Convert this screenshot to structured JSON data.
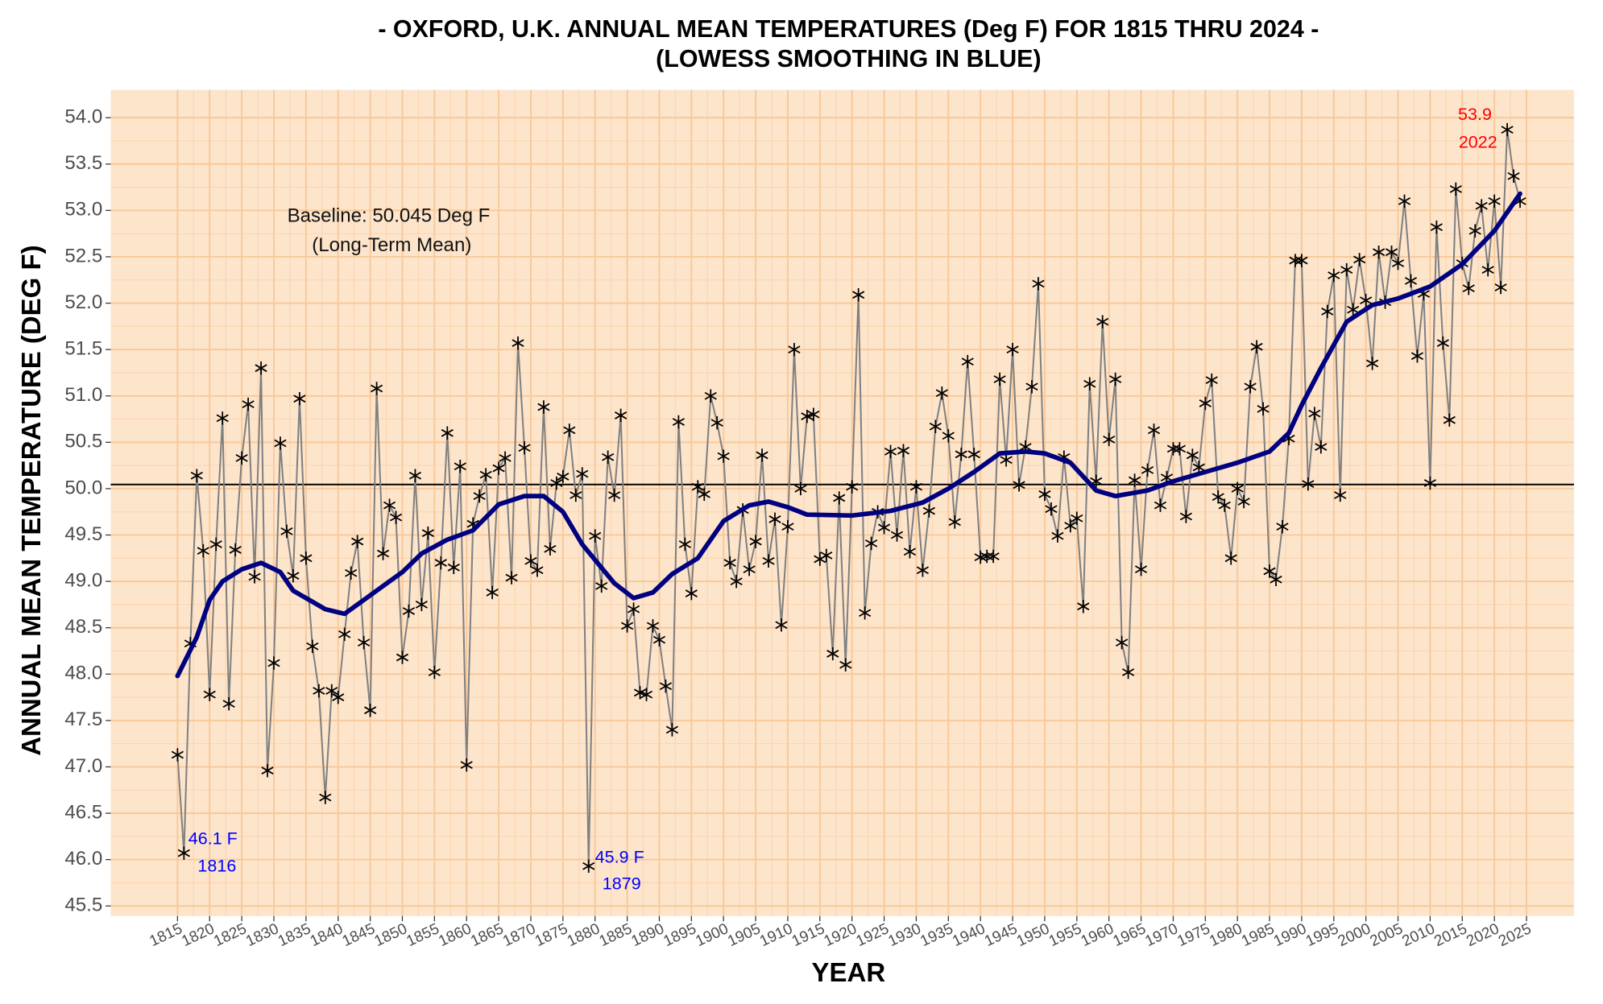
{
  "chart_data": {
    "type": "line",
    "title": "- OXFORD, U.K. ANNUAL MEAN TEMPERATURES (Deg F) FOR 1815 THRU 2024 -",
    "subtitle": "(LOWESS SMOOTHING IN BLUE)",
    "x_label": "YEAR",
    "y_label": "ANNUAL MEAN TEMPERATURE (DEG F)",
    "x": [
      1815,
      1816,
      1817,
      1818,
      1819,
      1820,
      1821,
      1822,
      1823,
      1824,
      1825,
      1826,
      1827,
      1828,
      1829,
      1830,
      1831,
      1832,
      1833,
      1834,
      1835,
      1836,
      1837,
      1838,
      1839,
      1840,
      1841,
      1842,
      1843,
      1844,
      1845,
      1846,
      1847,
      1848,
      1849,
      1850,
      1851,
      1852,
      1853,
      1854,
      1855,
      1856,
      1857,
      1858,
      1859,
      1860,
      1861,
      1862,
      1863,
      1864,
      1865,
      1866,
      1867,
      1868,
      1869,
      1870,
      1871,
      1872,
      1873,
      1874,
      1875,
      1876,
      1877,
      1878,
      1879,
      1880,
      1881,
      1882,
      1883,
      1884,
      1885,
      1886,
      1887,
      1888,
      1889,
      1890,
      1891,
      1892,
      1893,
      1894,
      1895,
      1896,
      1897,
      1898,
      1899,
      1900,
      1901,
      1902,
      1903,
      1904,
      1905,
      1906,
      1907,
      1908,
      1909,
      1910,
      1911,
      1912,
      1913,
      1914,
      1915,
      1916,
      1917,
      1918,
      1919,
      1920,
      1921,
      1922,
      1923,
      1924,
      1925,
      1926,
      1927,
      1928,
      1929,
      1930,
      1931,
      1932,
      1933,
      1934,
      1935,
      1936,
      1937,
      1938,
      1939,
      1940,
      1941,
      1942,
      1943,
      1944,
      1945,
      1946,
      1947,
      1948,
      1949,
      1950,
      1951,
      1952,
      1953,
      1954,
      1955,
      1956,
      1957,
      1958,
      1959,
      1960,
      1961,
      1962,
      1963,
      1964,
      1965,
      1966,
      1967,
      1968,
      1969,
      1970,
      1971,
      1972,
      1973,
      1974,
      1975,
      1976,
      1977,
      1978,
      1979,
      1980,
      1981,
      1982,
      1983,
      1984,
      1985,
      1986,
      1987,
      1988,
      1989,
      1990,
      1991,
      1992,
      1993,
      1994,
      1995,
      1996,
      1997,
      1998,
      1999,
      2000,
      2001,
      2002,
      2003,
      2004,
      2005,
      2006,
      2007,
      2008,
      2009,
      2010,
      2011,
      2012,
      2013,
      2014,
      2015,
      2016,
      2017,
      2018,
      2019,
      2020,
      2021,
      2022,
      2023,
      2024
    ],
    "series": [
      {
        "color": "#808080",
        "marker_color": "#000000",
        "values": [
          47.13,
          46.07,
          48.33,
          50.14,
          49.33,
          47.78,
          49.4,
          50.76,
          47.68,
          49.34,
          50.33,
          50.91,
          49.05,
          51.3,
          46.96,
          48.12,
          50.49,
          49.54,
          49.06,
          50.97,
          49.25,
          48.3,
          47.82,
          46.67,
          47.82,
          47.75,
          48.43,
          49.09,
          49.43,
          48.34,
          47.61,
          51.08,
          49.3,
          49.82,
          49.69,
          48.18,
          48.68,
          50.14,
          48.75,
          49.52,
          48.02,
          49.2,
          50.6,
          49.15,
          50.24,
          47.02,
          49.62,
          49.92,
          50.15,
          48.88,
          50.22,
          50.33,
          49.04,
          51.57,
          50.44,
          49.22,
          49.12,
          50.88,
          49.35,
          50.06,
          50.13,
          50.63,
          49.93,
          50.16,
          45.93,
          49.49,
          48.95,
          50.34,
          49.93,
          50.79,
          48.52,
          48.7,
          47.8,
          47.78,
          48.52,
          48.37,
          47.87,
          47.4,
          50.72,
          49.4,
          48.87,
          50.02,
          49.94,
          51.0,
          50.71,
          50.35,
          49.2,
          49.0,
          49.77,
          49.13,
          49.43,
          50.36,
          49.22,
          49.67,
          48.53,
          49.59,
          51.5,
          50.0,
          50.78,
          50.8,
          49.24,
          49.28,
          48.22,
          49.9,
          48.1,
          50.02,
          52.09,
          48.66,
          49.41,
          49.75,
          49.58,
          50.4,
          49.5,
          50.41,
          49.32,
          50.02,
          49.12,
          49.76,
          50.67,
          51.03,
          50.57,
          49.64,
          50.37,
          51.37,
          50.37,
          49.26,
          49.27,
          49.27,
          51.18,
          50.31,
          51.5,
          50.04,
          50.45,
          51.1,
          52.21,
          49.94,
          49.78,
          49.49,
          50.34,
          49.6,
          49.68,
          48.73,
          51.13,
          50.08,
          51.8,
          50.53,
          51.18,
          48.34,
          48.02,
          50.09,
          49.13,
          50.2,
          50.63,
          49.82,
          50.12,
          50.43,
          50.43,
          49.7,
          50.36,
          50.23,
          50.92,
          51.17,
          49.91,
          49.82,
          49.25,
          50.0,
          49.86,
          51.1,
          51.53,
          50.86,
          49.11,
          49.02,
          49.59,
          50.54,
          52.46,
          52.46,
          50.05,
          50.81,
          50.45,
          51.91,
          52.3,
          49.93,
          52.36,
          51.93,
          52.47,
          52.03,
          51.35,
          52.55,
          52.01,
          52.55,
          52.43,
          53.1,
          52.24,
          51.43,
          52.1,
          50.06,
          52.82,
          51.57,
          50.74,
          53.23,
          52.43,
          52.16,
          52.78,
          53.05,
          52.36,
          53.1,
          52.17,
          53.87,
          53.37,
          53.1
        ]
      }
    ],
    "smooth": {
      "color": "#000080",
      "x": [
        1815,
        1818,
        1820,
        1822,
        1825,
        1828,
        1831,
        1833,
        1838,
        1841,
        1844,
        1847,
        1850,
        1853,
        1857,
        1861,
        1865,
        1869,
        1872,
        1875,
        1878,
        1883,
        1886,
        1889,
        1892,
        1896,
        1900,
        1904,
        1907,
        1910,
        1913,
        1920,
        1926,
        1931,
        1935,
        1939,
        1943,
        1947,
        1950,
        1954,
        1958,
        1961,
        1966,
        1970,
        1975,
        1980,
        1985,
        1988,
        1990,
        1993,
        1997,
        2001,
        2005,
        2010,
        2015,
        2020,
        2024
      ],
      "values": [
        47.98,
        48.4,
        48.8,
        49.0,
        49.13,
        49.2,
        49.1,
        48.9,
        48.7,
        48.65,
        48.8,
        48.95,
        49.1,
        49.3,
        49.45,
        49.55,
        49.83,
        49.92,
        49.92,
        49.75,
        49.4,
        48.98,
        48.82,
        48.88,
        49.08,
        49.25,
        49.65,
        49.82,
        49.86,
        49.8,
        49.72,
        49.71,
        49.76,
        49.85,
        50.0,
        50.18,
        50.38,
        50.4,
        50.38,
        50.28,
        49.98,
        49.92,
        49.98,
        50.08,
        50.18,
        50.28,
        50.4,
        50.6,
        50.9,
        51.3,
        51.8,
        51.98,
        52.05,
        52.18,
        52.42,
        52.78,
        53.18
      ]
    },
    "baseline": {
      "value": 50.045,
      "label": "Baseline: 50.045 Deg F",
      "note": "(Long-Term Mean)",
      "color": "#000000"
    },
    "annotations": [
      {
        "text": "46.1 F",
        "color": "#0000ff"
      },
      {
        "text": "1816",
        "color": "#0000ff"
      },
      {
        "text": "45.9 F",
        "color": "#0000ff"
      },
      {
        "text": "1879",
        "color": "#0000ff"
      },
      {
        "text": "53.9",
        "color": "#ff0000"
      },
      {
        "text": "2022",
        "color": "#ff0000"
      }
    ],
    "xlim": [
      1804.6,
      2032.4
    ],
    "ylim": [
      45.39,
      54.3
    ],
    "xticks": [
      1815,
      1820,
      1825,
      1830,
      1835,
      1840,
      1845,
      1850,
      1855,
      1860,
      1865,
      1870,
      1875,
      1880,
      1885,
      1890,
      1895,
      1900,
      1905,
      1910,
      1915,
      1920,
      1925,
      1930,
      1935,
      1940,
      1945,
      1950,
      1955,
      1960,
      1965,
      1970,
      1975,
      1980,
      1985,
      1990,
      1995,
      2000,
      2005,
      2010,
      2015,
      2020,
      2025
    ],
    "yticks": [
      45.5,
      {
        "value": 46,
        "label": "46.0"
      },
      46.5,
      {
        "value": 47,
        "label": "47.0"
      },
      47.5,
      {
        "value": 48,
        "label": "48.0"
      },
      48.5,
      {
        "value": 49,
        "label": "49.0"
      },
      49.5,
      {
        "value": 50,
        "label": "50.0"
      },
      50.5,
      {
        "value": 51,
        "label": "51.0"
      },
      51.5,
      {
        "value": 52,
        "label": "52.0"
      },
      52.5,
      {
        "value": 53,
        "label": "53.0"
      },
      53.5,
      {
        "value": 54,
        "label": "54.0"
      }
    ],
    "grid": true,
    "background": "#fde5cc"
  }
}
